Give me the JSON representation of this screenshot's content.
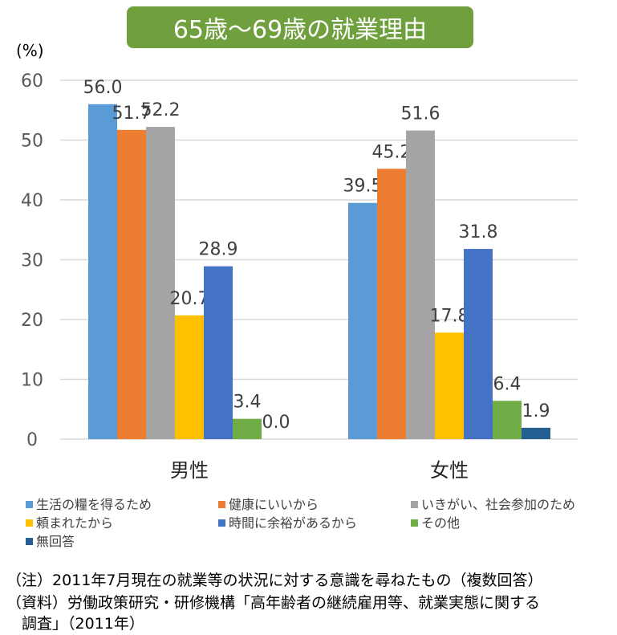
{
  "chart_data": {
    "type": "bar",
    "title": "65歳～69歳の就業理由",
    "ylabel": "(%)",
    "ylim": [
      0,
      60
    ],
    "yticks": [
      0,
      10,
      20,
      30,
      40,
      50,
      60
    ],
    "grid": true,
    "legend_position": "bottom",
    "categories": [
      "男性",
      "女性"
    ],
    "series": [
      {
        "name": "生活の糧を得るため",
        "color": "#5B9BD5",
        "values": [
          56.0,
          39.5
        ]
      },
      {
        "name": "健康にいいから",
        "color": "#ED7D31",
        "values": [
          51.7,
          45.2
        ]
      },
      {
        "name": "いきがい、社会参加のため",
        "color": "#A5A5A5",
        "values": [
          52.2,
          51.6
        ]
      },
      {
        "name": "頼まれたから",
        "color": "#FFC000",
        "values": [
          20.7,
          17.8
        ]
      },
      {
        "name": "時間に余裕があるから",
        "color": "#4472C4",
        "values": [
          28.9,
          31.8
        ]
      },
      {
        "name": "その他",
        "color": "#70AD47",
        "values": [
          3.4,
          6.4
        ]
      },
      {
        "name": "無回答",
        "color": "#255E91",
        "values": [
          0.0,
          1.9
        ]
      }
    ],
    "title_bg": "#70A03E"
  },
  "notes": [
    "（注）2011年7月現在の就業等の状況に対する意識を尋ねたもの（複数回答）",
    "（資料）労働政策研究・研修機構「高年齢者の継続雇用等、就業実態に関する",
    "　調査」（2011年）"
  ]
}
